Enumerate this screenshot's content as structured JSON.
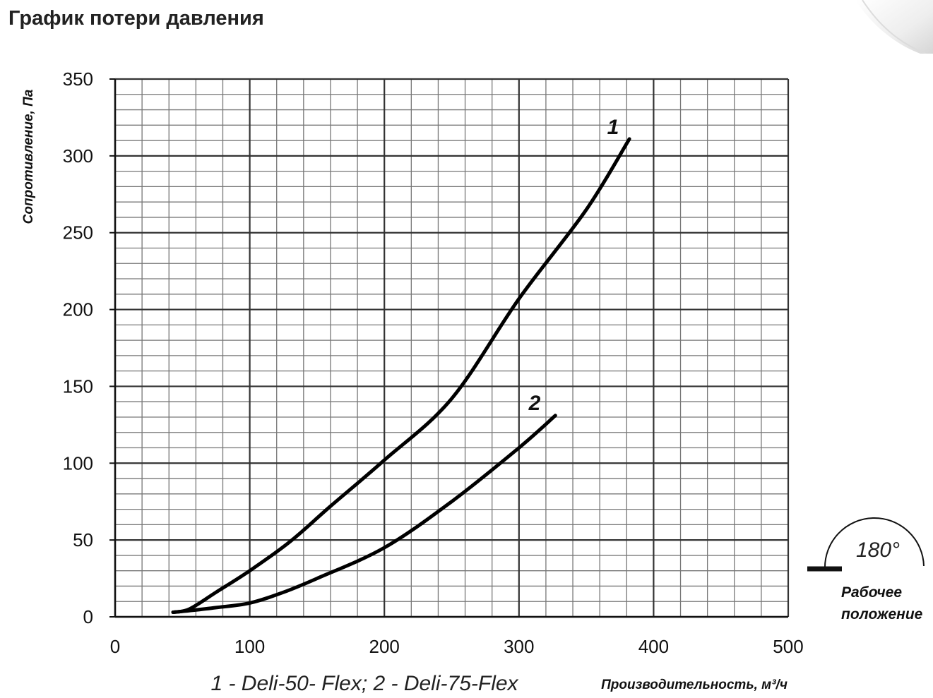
{
  "page": {
    "title": "График потери давления"
  },
  "chart_data": {
    "type": "line",
    "xlabel": "Производительность, м³/ч",
    "ylabel": "Сопротивление, Па",
    "xlim": [
      0,
      500
    ],
    "ylim": [
      0,
      350
    ],
    "x_ticks": [
      "0",
      "100",
      "200",
      "300",
      "400",
      "500"
    ],
    "y_ticks": [
      "0",
      "50",
      "100",
      "150",
      "200",
      "250",
      "300",
      "350"
    ],
    "grid": true,
    "legend_text": "1 - Deli-50- Flex;  2 - Deli-75-Flex",
    "series": [
      {
        "name": "1",
        "x": [
          43,
          55,
          75,
          100,
          130,
          160,
          200,
          250,
          300,
          350,
          382
        ],
        "y": [
          3,
          5,
          16,
          30,
          49,
          72,
          102,
          142,
          207,
          265,
          311
        ]
      },
      {
        "name": "2",
        "x": [
          43,
          55,
          75,
          100,
          125,
          150,
          200,
          250,
          300,
          327
        ],
        "y": [
          3,
          4,
          6,
          9,
          16,
          25,
          45,
          75,
          110,
          131
        ]
      }
    ],
    "annotation": {
      "angle": "180°",
      "position_line1": "Рабочее",
      "position_line2": "положение"
    },
    "colors": {
      "line": "#000000",
      "major_grid": "#333333",
      "minor_grid": "#777777"
    }
  }
}
